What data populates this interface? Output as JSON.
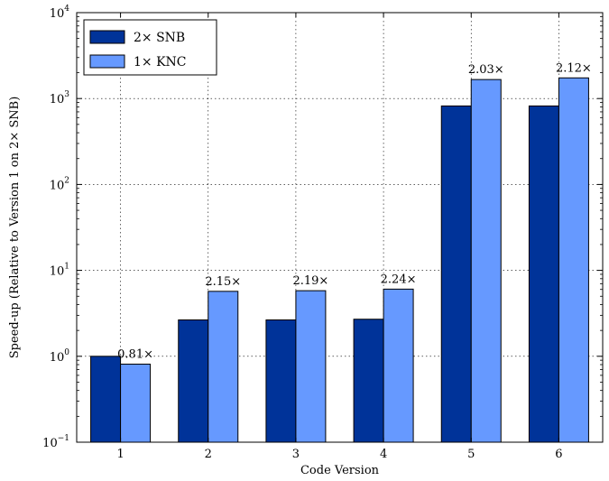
{
  "chart_data": {
    "type": "bar",
    "xlabel": "Code Version",
    "ylabel": "Speed-up (Relative to Version 1 on 2× SNB)",
    "yscale": "log",
    "ylim": [
      0.1,
      10000
    ],
    "y_ticks": [
      {
        "base": "10",
        "exp": "−1"
      },
      {
        "base": "10",
        "exp": "0"
      },
      {
        "base": "10",
        "exp": "1"
      },
      {
        "base": "10",
        "exp": "2"
      },
      {
        "base": "10",
        "exp": "3"
      },
      {
        "base": "10",
        "exp": "4"
      }
    ],
    "categories": [
      "1",
      "2",
      "3",
      "4",
      "5",
      "6"
    ],
    "series": [
      {
        "name": "2× SNB",
        "color": "#003399",
        "values": [
          1.0,
          2.65,
          2.65,
          2.7,
          820,
          820
        ]
      },
      {
        "name": "1× KNC",
        "color": "#6699ff",
        "values": [
          0.81,
          5.7,
          5.8,
          6.05,
          1665,
          1740
        ]
      }
    ],
    "annotations": [
      "0.81×",
      "2.15×",
      "2.19×",
      "2.24×",
      "2.03×",
      "2.12×"
    ],
    "grid": true,
    "legend_position": "top-left"
  }
}
